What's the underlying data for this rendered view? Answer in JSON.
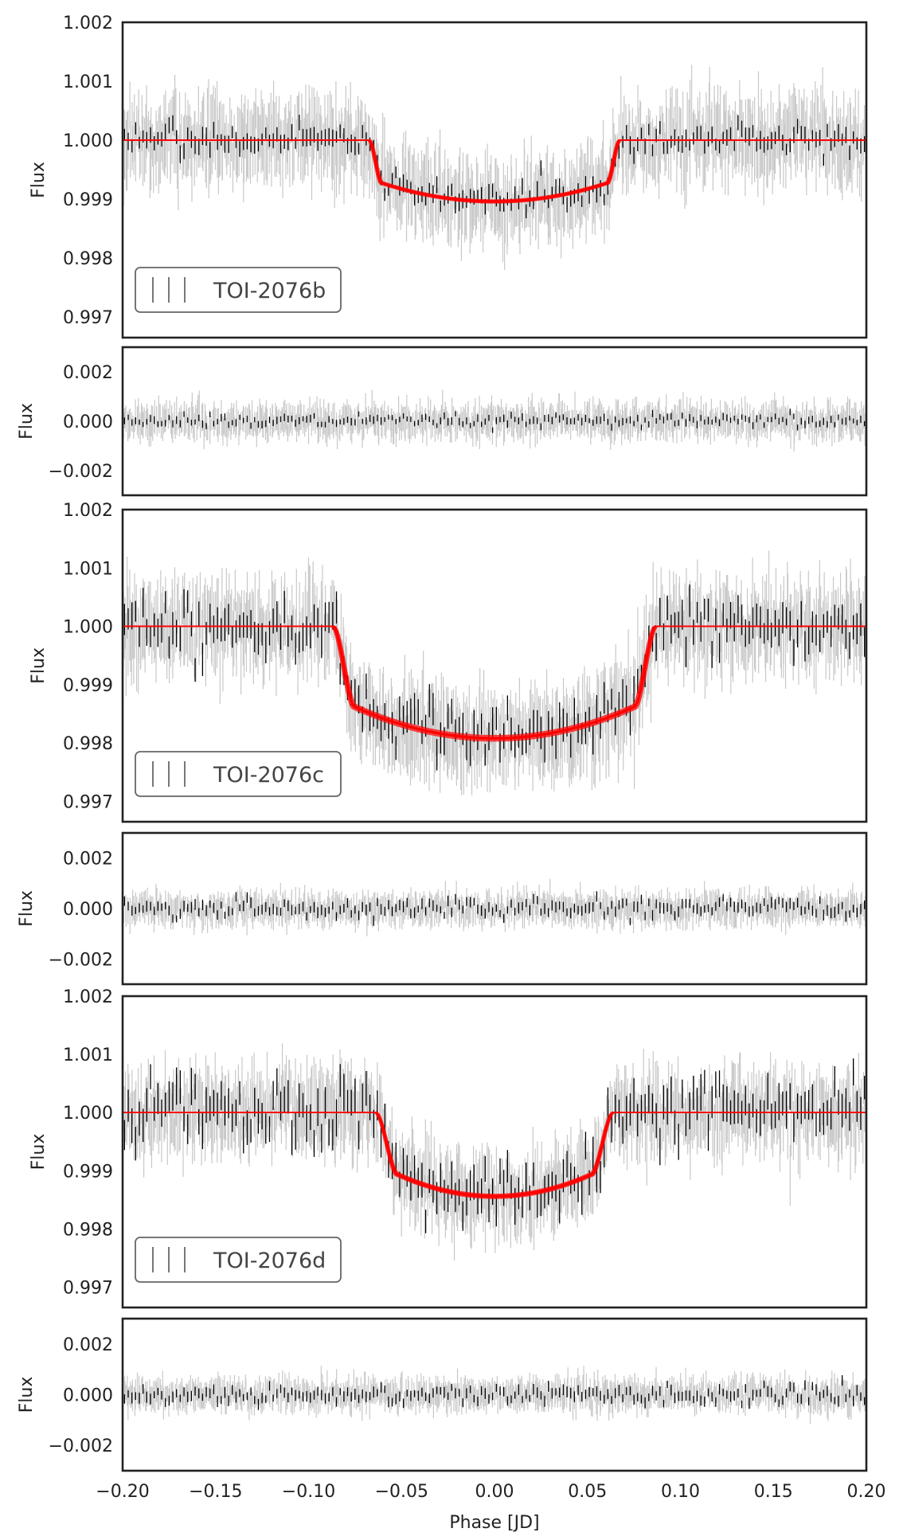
{
  "chart_data": {
    "type": "line",
    "x_label": "Phase [JD]",
    "xlim": [
      -0.2,
      0.2
    ],
    "x_ticks": [
      "−0.20",
      "−0.15",
      "−0.10",
      "−0.05",
      "0.00",
      "0.05",
      "0.10",
      "0.15",
      "0.20"
    ],
    "x_tick_values": [
      -0.2,
      -0.15,
      -0.1,
      -0.05,
      0.0,
      0.05,
      0.1,
      0.15,
      0.2
    ],
    "colors": {
      "model": "#ff0000",
      "binned": "#000000",
      "raw": "#c8c8c8",
      "frame": "#222222"
    },
    "panels": [
      {
        "kind": "lightcurve",
        "planet": "TOI-2076b",
        "y_label": "Flux",
        "ylim": [
          0.99665,
          1.002
        ],
        "y_ticks": [
          "0.997",
          "0.998",
          "0.999",
          "1.000",
          "1.001",
          "1.002"
        ],
        "y_tick_values": [
          0.997,
          0.998,
          0.999,
          1.0,
          1.001,
          1.002
        ],
        "model": {
          "t14": 0.135,
          "t12": 0.007,
          "depth": 0.00104,
          "curvature": 0.3,
          "baseline": 1.0
        },
        "noise": {
          "raw_sigma": 0.0005,
          "binned_sigma": 0.00012
        },
        "legend": "TOI-2076b"
      },
      {
        "kind": "residual",
        "y_label": "Flux",
        "ylim": [
          -0.003,
          0.003
        ],
        "y_ticks": [
          "−0.002",
          "0.000",
          "0.002"
        ],
        "y_tick_values": [
          -0.002,
          0.0,
          0.002
        ],
        "noise": {
          "raw_sigma": 0.0005,
          "binned_sigma": 0.00012
        }
      },
      {
        "kind": "lightcurve",
        "planet": "TOI-2076c",
        "y_label": "Flux",
        "ylim": [
          0.99665,
          1.002
        ],
        "y_ticks": [
          "0.997",
          "0.998",
          "0.999",
          "1.000",
          "1.001",
          "1.002"
        ],
        "y_tick_values": [
          0.997,
          0.998,
          0.999,
          1.0,
          1.001,
          1.002
        ],
        "model": {
          "t14": 0.174,
          "t12": 0.012,
          "depth": 0.00192,
          "curvature": 0.28,
          "baseline": 1.0
        },
        "noise": {
          "raw_sigma": 0.00055,
          "binned_sigma": 0.00022
        },
        "legend": "TOI-2076c"
      },
      {
        "kind": "residual",
        "y_label": "Flux",
        "ylim": [
          -0.003,
          0.003
        ],
        "y_ticks": [
          "−0.002",
          "0.000",
          "0.002"
        ],
        "y_tick_values": [
          -0.002,
          0.0,
          0.002
        ],
        "noise": {
          "raw_sigma": 0.00045,
          "binned_sigma": 0.00017
        }
      },
      {
        "kind": "lightcurve",
        "planet": "TOI-2076d",
        "y_label": "Flux",
        "ylim": [
          0.99665,
          1.002
        ],
        "y_ticks": [
          "0.997",
          "0.998",
          "0.999",
          "1.000",
          "1.001",
          "1.002"
        ],
        "y_tick_values": [
          0.997,
          0.998,
          0.999,
          1.0,
          1.001,
          1.002
        ],
        "model": {
          "t14": 0.128,
          "t12": 0.012,
          "depth": 0.00144,
          "curvature": 0.26,
          "baseline": 1.0
        },
        "noise": {
          "raw_sigma": 0.0005,
          "binned_sigma": 0.00025
        },
        "legend": "TOI-2076d"
      },
      {
        "kind": "residual",
        "y_label": "Flux",
        "ylim": [
          -0.003,
          0.003
        ],
        "y_ticks": [
          "−0.002",
          "0.000",
          "0.002"
        ],
        "y_tick_values": [
          -0.002,
          0.0,
          0.002
        ],
        "noise": {
          "raw_sigma": 0.00045,
          "binned_sigma": 0.00017
        }
      }
    ]
  }
}
